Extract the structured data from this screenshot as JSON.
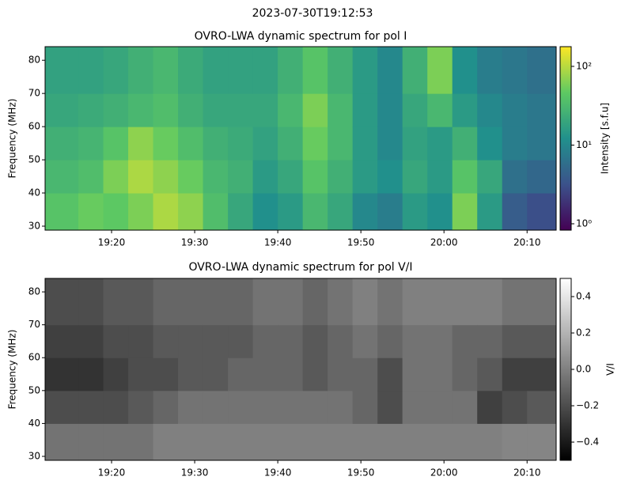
{
  "title": "2023-07-30T19:12:53",
  "chart_data": [
    {
      "type": "heatmap",
      "title": "OVRO-LWA dynamic spectrum for pol I",
      "ylabel": "Frequency (MHz)",
      "colorbar_label": "Intensity [s.f.u]",
      "colormap": "viridis",
      "color_scale": "log",
      "x_edges": [
        1152,
        1156,
        1159,
        1162,
        1165,
        1168,
        1171,
        1174,
        1177,
        1180,
        1183,
        1186,
        1189,
        1192,
        1195,
        1198,
        1201,
        1204,
        1207,
        1210,
        1213.5
      ],
      "y_edges": [
        28.8,
        40,
        50,
        60,
        70,
        84.1
      ],
      "values": [
        [
          40,
          30,
          25,
          20,
          18
        ],
        [
          50,
          35,
          28,
          22,
          18
        ],
        [
          45,
          60,
          40,
          25,
          20
        ],
        [
          60,
          90,
          70,
          30,
          25
        ],
        [
          90,
          70,
          50,
          35,
          30
        ],
        [
          70,
          50,
          35,
          25,
          22
        ],
        [
          35,
          30,
          25,
          20,
          18
        ],
        [
          20,
          25,
          22,
          20,
          18
        ],
        [
          12,
          15,
          18,
          20,
          18
        ],
        [
          15,
          20,
          25,
          30,
          25
        ],
        [
          30,
          40,
          50,
          60,
          40
        ],
        [
          20,
          25,
          30,
          30,
          25
        ],
        [
          10,
          15,
          15,
          15,
          15
        ],
        [
          8,
          12,
          10,
          10,
          10
        ],
        [
          15,
          20,
          18,
          20,
          25
        ],
        [
          12,
          15,
          15,
          30,
          60
        ],
        [
          60,
          40,
          25,
          15,
          12
        ],
        [
          15,
          20,
          12,
          10,
          8
        ],
        [
          4,
          6,
          8,
          8,
          7
        ],
        [
          3,
          5,
          7,
          7,
          6
        ]
      ],
      "xlim": [
        1152,
        1213.5
      ],
      "xticks": [
        {
          "value": 1160,
          "label": "19:20"
        },
        {
          "value": 1170,
          "label": "19:30"
        },
        {
          "value": 1180,
          "label": "19:40"
        },
        {
          "value": 1190,
          "label": "19:50"
        },
        {
          "value": 1200,
          "label": "20:00"
        },
        {
          "value": 1210,
          "label": "20:10"
        }
      ],
      "ylim": [
        28.8,
        84.1
      ],
      "yticks": [
        30,
        40,
        50,
        60,
        70,
        80
      ],
      "clim": [
        0.83,
        178
      ],
      "cticks": [
        {
          "value": 1,
          "label": "10⁰"
        },
        {
          "value": 10,
          "label": "10¹"
        },
        {
          "value": 100,
          "label": "10²"
        }
      ]
    },
    {
      "type": "heatmap",
      "title": "OVRO-LWA dynamic spectrum for pol V/I",
      "ylabel": "Frequency (MHz)",
      "colorbar_label": "V/I",
      "colormap": "gray",
      "color_scale": "linear",
      "x_edges": [
        1152,
        1156,
        1159,
        1162,
        1165,
        1168,
        1171,
        1174,
        1177,
        1180,
        1183,
        1186,
        1189,
        1192,
        1195,
        1198,
        1201,
        1204,
        1207,
        1210,
        1213.5
      ],
      "y_edges": [
        28.8,
        40,
        50,
        60,
        70,
        84.1
      ],
      "values": [
        [
          -0.05,
          -0.2,
          -0.3,
          -0.25,
          -0.2
        ],
        [
          -0.05,
          -0.2,
          -0.3,
          -0.25,
          -0.2
        ],
        [
          -0.05,
          -0.2,
          -0.25,
          -0.2,
          -0.15
        ],
        [
          -0.05,
          -0.15,
          -0.2,
          -0.2,
          -0.15
        ],
        [
          0,
          -0.1,
          -0.2,
          -0.15,
          -0.1
        ],
        [
          0,
          -0.05,
          -0.15,
          -0.15,
          -0.1
        ],
        [
          0,
          -0.05,
          -0.15,
          -0.15,
          -0.1
        ],
        [
          0,
          -0.05,
          -0.1,
          -0.15,
          -0.1
        ],
        [
          0,
          -0.05,
          -0.1,
          -0.1,
          -0.05
        ],
        [
          0,
          -0.05,
          -0.1,
          -0.1,
          -0.05
        ],
        [
          0,
          -0.05,
          -0.15,
          -0.15,
          -0.1
        ],
        [
          0,
          -0.05,
          -0.1,
          -0.1,
          -0.05
        ],
        [
          0,
          -0.1,
          -0.1,
          -0.05,
          0
        ],
        [
          0,
          -0.2,
          -0.2,
          -0.1,
          -0.05
        ],
        [
          0,
          -0.05,
          -0.05,
          -0.05,
          0
        ],
        [
          0,
          -0.05,
          -0.05,
          -0.05,
          0
        ],
        [
          0,
          -0.05,
          -0.1,
          -0.1,
          0
        ],
        [
          0,
          -0.25,
          -0.15,
          -0.1,
          0
        ],
        [
          0.02,
          -0.2,
          -0.25,
          -0.15,
          -0.05
        ],
        [
          0.02,
          -0.15,
          -0.25,
          -0.15,
          -0.05
        ]
      ],
      "xlim": [
        1152,
        1213.5
      ],
      "xticks": [
        {
          "value": 1160,
          "label": "19:20"
        },
        {
          "value": 1170,
          "label": "19:30"
        },
        {
          "value": 1180,
          "label": "19:40"
        },
        {
          "value": 1190,
          "label": "19:50"
        },
        {
          "value": 1200,
          "label": "20:00"
        },
        {
          "value": 1210,
          "label": "20:10"
        }
      ],
      "ylim": [
        28.8,
        84.1
      ],
      "yticks": [
        30,
        40,
        50,
        60,
        70,
        80
      ],
      "clim": [
        -0.5,
        0.5
      ],
      "cticks": [
        {
          "value": 0.4,
          "label": "0.4"
        },
        {
          "value": 0.2,
          "label": "0.2"
        },
        {
          "value": 0,
          "label": "0.0"
        },
        {
          "value": -0.2,
          "label": "−0.2"
        },
        {
          "value": -0.4,
          "label": "−0.4"
        }
      ]
    }
  ]
}
